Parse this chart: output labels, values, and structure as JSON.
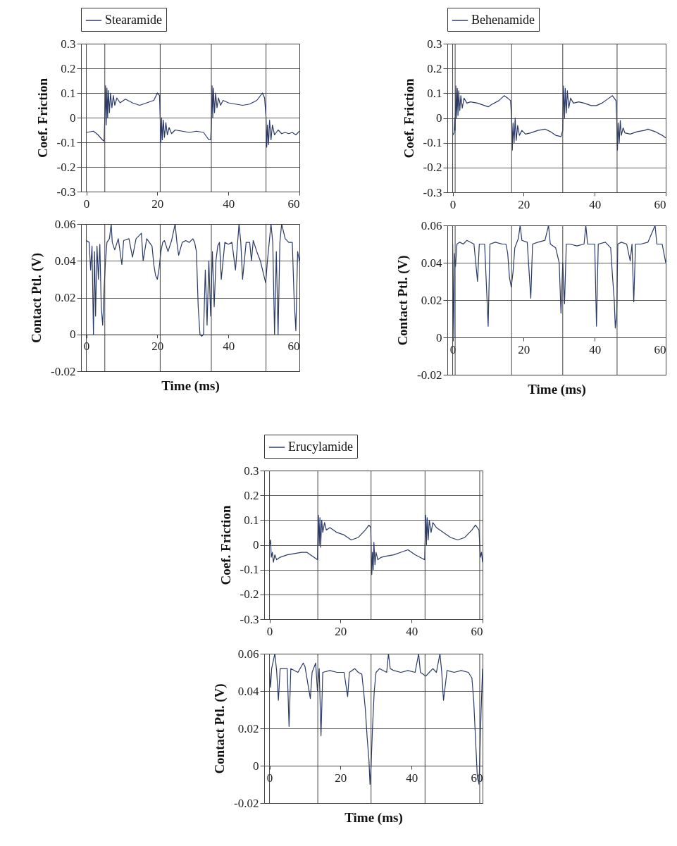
{
  "chart_data": [
    {
      "type": "line",
      "ylabel": "Coef. Friction",
      "xlim": [
        -1.5,
        60
      ],
      "xticks": [
        0,
        20,
        40,
        60
      ],
      "ylim": [
        -0.3,
        0.3
      ],
      "yticks": [
        -0.3,
        -0.2,
        -0.1,
        0,
        0.1,
        0.2,
        0.3
      ],
      "grid": "y",
      "legend": "top",
      "ref_lines": [
        {
          "axis": "x",
          "value": 0
        },
        {
          "axis": "x",
          "value": 5.2
        },
        {
          "axis": "x",
          "value": 20.8
        },
        {
          "axis": "x",
          "value": 35.2
        },
        {
          "axis": "x",
          "value": 50.6
        }
      ],
      "series": [
        {
          "name": "Stearamide",
          "color": "#2b3a67",
          "x": [
            0,
            2,
            3.3,
            4.5,
            5,
            5.2,
            5.4,
            5.6,
            5.8,
            6,
            6.2,
            6.5,
            6.8,
            7.2,
            7.6,
            8,
            8.6,
            9.5,
            11,
            13,
            15,
            17,
            19,
            20,
            20.6,
            20.8,
            21,
            21.2,
            21.4,
            21.7,
            22,
            22.4,
            22.8,
            23.3,
            24,
            25,
            27,
            29,
            31,
            33,
            34.5,
            35,
            35.2,
            35.4,
            35.6,
            35.8,
            36.1,
            36.4,
            36.8,
            37.2,
            37.8,
            38.5,
            40,
            42,
            44,
            46,
            48,
            49.6,
            50.2,
            50.6,
            50.8,
            51,
            51.3,
            51.6,
            52,
            52.4,
            53,
            54,
            55,
            56,
            57,
            58,
            59,
            60
          ],
          "values": [
            -0.06,
            -0.055,
            -0.07,
            -0.09,
            -0.095,
            0,
            0.13,
            -0.03,
            0.12,
            0,
            0.11,
            0.02,
            0.1,
            0.04,
            0.09,
            0.05,
            0.08,
            0.06,
            0.075,
            0.06,
            0.05,
            0.06,
            0.07,
            0.1,
            0.09,
            0,
            -0.1,
            0,
            -0.09,
            -0.01,
            -0.08,
            -0.02,
            -0.07,
            -0.04,
            -0.065,
            -0.05,
            -0.055,
            -0.06,
            -0.055,
            -0.06,
            -0.09,
            -0.09,
            -0.03,
            0.13,
            0,
            0.12,
            0.02,
            0.1,
            0.04,
            0.08,
            0.05,
            0.07,
            0.06,
            0.055,
            0.05,
            0.055,
            0.07,
            0.1,
            0.08,
            0,
            -0.12,
            -0.03,
            -0.11,
            -0.01,
            -0.09,
            -0.03,
            -0.07,
            -0.05,
            -0.065,
            -0.06,
            -0.065,
            -0.06,
            -0.07,
            -0.055
          ]
        }
      ]
    },
    {
      "type": "line",
      "xlabel": "Time (ms)",
      "ylabel": "Contact Ptl. (V)",
      "xlim": [
        -1.5,
        60
      ],
      "xticks": [
        0,
        20,
        40,
        60
      ],
      "ylim": [
        -0.02,
        0.06
      ],
      "yticks": [
        -0.02,
        0,
        0.02,
        0.04,
        0.06
      ],
      "grid": "y",
      "ref_lines": [
        {
          "axis": "x",
          "value": 0
        },
        {
          "axis": "x",
          "value": 5.2
        },
        {
          "axis": "x",
          "value": 20.8
        },
        {
          "axis": "x",
          "value": 35.2
        },
        {
          "axis": "x",
          "value": 50.6
        }
      ],
      "series": [
        {
          "color": "#2b3a67",
          "x": [
            0,
            0.8,
            1.2,
            1.6,
            2,
            2.3,
            2.6,
            3,
            3.4,
            3.8,
            4.2,
            4.6,
            5,
            5.4,
            5.8,
            6.5,
            7,
            7.3,
            8,
            9,
            10,
            10.5,
            12,
            13,
            14,
            15.5,
            16,
            17,
            18.5,
            19,
            19.5,
            20,
            20.5,
            21,
            21.5,
            22,
            23,
            24,
            25,
            25.5,
            26,
            27,
            28,
            29,
            30,
            30.5,
            31,
            31.5,
            32,
            32.5,
            33,
            33.5,
            34,
            34.5,
            35,
            35.5,
            36,
            36.5,
            37,
            37.5,
            38,
            39,
            40,
            41,
            42,
            43,
            43.5,
            44,
            45,
            46,
            46.5,
            47,
            48,
            49,
            50,
            50.5,
            51,
            51.5,
            52,
            52.5,
            53,
            53.5,
            54,
            54.5,
            55,
            56,
            57,
            58,
            58.5,
            59,
            59.5,
            60
          ],
          "values": [
            0.051,
            0.05,
            0.035,
            0.048,
            0,
            0.045,
            0.01,
            0.048,
            0.03,
            0.049,
            0.015,
            0.005,
            0.025,
            0.04,
            0.05,
            0.052,
            0.06,
            0.05,
            0.046,
            0.052,
            0.038,
            0.051,
            0.052,
            0.042,
            0.052,
            0.055,
            0.04,
            0.052,
            0.048,
            0.038,
            0.032,
            0.03,
            0.036,
            0.045,
            0.05,
            0.051,
            0.045,
            0.051,
            0.06,
            0.05,
            0.043,
            0.05,
            0.051,
            0.05,
            0.052,
            0.05,
            0.045,
            0.015,
            0,
            -0.001,
            0,
            0.035,
            0.005,
            0.04,
            0.01,
            0.045,
            0.015,
            0.04,
            0.048,
            0.05,
            0.03,
            0.05,
            0.049,
            0.05,
            0.035,
            0.06,
            0.05,
            0.03,
            0.05,
            0.05,
            0.04,
            0.051,
            0.045,
            0.04,
            0.032,
            0.028,
            0.04,
            0.05,
            0.06,
            0.05,
            0,
            0.045,
            0,
            0.05,
            0.06,
            0.052,
            0.05,
            0.05,
            0.02,
            0.002,
            0.045,
            0.04
          ]
        }
      ]
    },
    {
      "type": "line",
      "ylabel": "Coef. Friction",
      "xlim": [
        -1.5,
        60
      ],
      "xticks": [
        0,
        20,
        40,
        60
      ],
      "ylim": [
        -0.3,
        0.3
      ],
      "yticks": [
        -0.3,
        -0.2,
        -0.1,
        0,
        0.1,
        0.2,
        0.3
      ],
      "grid": "y",
      "legend": "top",
      "ref_lines": [
        {
          "axis": "x",
          "value": 0
        },
        {
          "axis": "x",
          "value": 0.7
        },
        {
          "axis": "x",
          "value": 16.6
        },
        {
          "axis": "x",
          "value": 31
        },
        {
          "axis": "x",
          "value": 46.3
        }
      ],
      "series": [
        {
          "name": "Behenamide",
          "color": "#2b3a67",
          "x": [
            0,
            0.4,
            0.6,
            0.7,
            0.9,
            1.1,
            1.3,
            1.5,
            1.7,
            2,
            2.3,
            2.7,
            3.2,
            4,
            5,
            7,
            9,
            10,
            11,
            13,
            14.5,
            15.5,
            16.3,
            16.6,
            16.8,
            17,
            17.3,
            17.6,
            17.9,
            18.3,
            18.8,
            19.5,
            20.5,
            22,
            24,
            26,
            27.5,
            29,
            30.5,
            31,
            31.2,
            31.5,
            31.7,
            32,
            32.3,
            32.7,
            33.2,
            34,
            35.5,
            37,
            39,
            40.5,
            42,
            43.5,
            45,
            46,
            46.2,
            46.4,
            46.6,
            46.9,
            47.2,
            47.5,
            48,
            48.5,
            50,
            52,
            54,
            55,
            57,
            59,
            60
          ],
          "values": [
            -0.07,
            -0.06,
            0,
            -0.05,
            0.13,
            0,
            0.12,
            0.01,
            0.11,
            0.03,
            0.09,
            0.04,
            0.08,
            0.06,
            0.065,
            0.06,
            0.05,
            0.045,
            0.055,
            0.07,
            0.09,
            0.08,
            0.07,
            0,
            -0.13,
            -0.02,
            -0.1,
            0,
            -0.09,
            -0.03,
            -0.07,
            -0.05,
            -0.065,
            -0.06,
            -0.05,
            -0.045,
            -0.055,
            -0.07,
            -0.075,
            -0.05,
            0.13,
            0,
            0.12,
            0.02,
            0.11,
            0.04,
            0.08,
            0.06,
            0.065,
            0.06,
            0.05,
            0.05,
            0.06,
            0.075,
            0.09,
            0.07,
            0,
            -0.13,
            -0.02,
            -0.1,
            -0.01,
            -0.07,
            -0.04,
            -0.06,
            -0.065,
            -0.055,
            -0.05,
            -0.045,
            -0.055,
            -0.07,
            -0.08
          ]
        }
      ]
    },
    {
      "type": "line",
      "xlabel": "Time (ms)",
      "ylabel": "Contact Ptl. (V)",
      "xlim": [
        -1.5,
        60
      ],
      "xticks": [
        0,
        20,
        40,
        60
      ],
      "ylim": [
        -0.02,
        0.06
      ],
      "yticks": [
        -0.02,
        0,
        0.02,
        0.04,
        0.06
      ],
      "grid": "y",
      "ref_lines": [
        {
          "axis": "x",
          "value": 0
        },
        {
          "axis": "x",
          "value": 0.7
        },
        {
          "axis": "x",
          "value": 16.6
        },
        {
          "axis": "x",
          "value": 31
        },
        {
          "axis": "x",
          "value": 46.3
        }
      ],
      "series": [
        {
          "color": "#2b3a67",
          "x": [
            0,
            0.3,
            0.5,
            0.8,
            1.2,
            2,
            3,
            4,
            6,
            7,
            7.5,
            9,
            10,
            10.5,
            12,
            14,
            15,
            15.5,
            16,
            16.5,
            17,
            17.5,
            18.5,
            19,
            19.5,
            21,
            22,
            22.5,
            24,
            26,
            27,
            27.5,
            29,
            30,
            30.5,
            31,
            31.5,
            32,
            33,
            35,
            37,
            37.5,
            38,
            40,
            40.5,
            41,
            43,
            44.5,
            45,
            45.5,
            45.8,
            46.2,
            46.5,
            47.5,
            49,
            50,
            50.5,
            51,
            51.5,
            53,
            55,
            57,
            57.5,
            59,
            60
          ],
          "values": [
            0.05,
            0,
            0.045,
            0.038,
            0.05,
            0.051,
            0.05,
            0.052,
            0.05,
            0.03,
            0.05,
            0.05,
            0.006,
            0.05,
            0.051,
            0.05,
            0.05,
            0.045,
            0.032,
            0.027,
            0.035,
            0.048,
            0.053,
            0.06,
            0.052,
            0.051,
            0.021,
            0.05,
            0.051,
            0.052,
            0.06,
            0.05,
            0.048,
            0.04,
            0.013,
            0.04,
            0.018,
            0.05,
            0.05,
            0.049,
            0.05,
            0.06,
            0.05,
            0.05,
            0.006,
            0.05,
            0.051,
            0.048,
            0.033,
            0.02,
            0.005,
            0.013,
            0.05,
            0.051,
            0.05,
            0.041,
            0.05,
            0.019,
            0.05,
            0.05,
            0.051,
            0.06,
            0.05,
            0.05,
            0.04
          ]
        }
      ]
    },
    {
      "type": "line",
      "ylabel": "Coef. Friction",
      "xlim": [
        -1.5,
        60
      ],
      "xticks": [
        0,
        20,
        40,
        60
      ],
      "ylim": [
        -0.3,
        0.3
      ],
      "yticks": [
        -0.3,
        -0.2,
        -0.1,
        0,
        0.1,
        0.2,
        0.3
      ],
      "grid": "y",
      "legend": "top",
      "ref_lines": [
        {
          "axis": "x",
          "value": 0
        },
        {
          "axis": "x",
          "value": 13.6
        },
        {
          "axis": "x",
          "value": 28.6
        },
        {
          "axis": "x",
          "value": 43.8
        },
        {
          "axis": "x",
          "value": 59.2
        }
      ],
      "series": [
        {
          "name": "Erucylamide",
          "color": "#2b3a67",
          "x": [
            0,
            0.3,
            0.5,
            0.8,
            1.1,
            1.5,
            2,
            3,
            5,
            7,
            9,
            10.5,
            12,
            13.5,
            13.6,
            13.8,
            14,
            14.2,
            14.4,
            14.7,
            15,
            15.5,
            16,
            17,
            19,
            21,
            23,
            25,
            27,
            28,
            28.5,
            28.6,
            28.8,
            29,
            29.2,
            29.4,
            29.7,
            30,
            30.5,
            31.5,
            33,
            35,
            37,
            39,
            41,
            43,
            43.7,
            43.8,
            44,
            44.2,
            44.4,
            44.7,
            45,
            45.5,
            46,
            47,
            49,
            51,
            53,
            55,
            57,
            58,
            59,
            59.2,
            59.4,
            59.7,
            60
          ],
          "values": [
            0,
            0.02,
            -0.05,
            -0.03,
            -0.07,
            -0.04,
            -0.06,
            -0.05,
            -0.04,
            -0.035,
            -0.03,
            -0.03,
            -0.045,
            -0.06,
            0,
            0.12,
            0,
            0.11,
            -0.01,
            0.1,
            0.05,
            0.09,
            0.06,
            0.07,
            0.05,
            0.04,
            0.02,
            0.03,
            0.06,
            0.08,
            0.07,
            0,
            -0.12,
            -0.03,
            -0.1,
            0.01,
            -0.08,
            -0.03,
            -0.06,
            -0.05,
            -0.045,
            -0.04,
            -0.03,
            -0.02,
            -0.04,
            -0.055,
            -0.06,
            0,
            0.12,
            0,
            0.11,
            0.02,
            0.1,
            0.05,
            0.09,
            0.07,
            0.05,
            0.03,
            0.02,
            0.03,
            0.06,
            0.08,
            0.06,
            0,
            -0.05,
            -0.03,
            -0.07
          ]
        }
      ]
    },
    {
      "type": "line",
      "xlabel": "Time (ms)",
      "ylabel": "Contact Ptl. (V)",
      "xlim": [
        -1.5,
        60
      ],
      "xticks": [
        0,
        20,
        40,
        60
      ],
      "ylim": [
        -0.02,
        0.06
      ],
      "yticks": [
        -0.02,
        0,
        0.02,
        0.04,
        0.06
      ],
      "grid": "y",
      "ref_lines": [
        {
          "axis": "x",
          "value": 0
        },
        {
          "axis": "x",
          "value": 13.6
        },
        {
          "axis": "x",
          "value": 28.6
        },
        {
          "axis": "x",
          "value": 43.8
        },
        {
          "axis": "x",
          "value": 59.2
        }
      ],
      "series": [
        {
          "color": "#2b3a67",
          "x": [
            0,
            0.3,
            0.6,
            1.5,
            2,
            2.5,
            3,
            5,
            5.5,
            6,
            8,
            9.5,
            10,
            11.5,
            12,
            13,
            13.5,
            14,
            14.5,
            15,
            17,
            19,
            21,
            22,
            22.5,
            24,
            25,
            26,
            26.5,
            27,
            27.5,
            28,
            28.3,
            28.6,
            29,
            29.5,
            30,
            31,
            33,
            33.5,
            34,
            35,
            37,
            39,
            41,
            42,
            42.5,
            44,
            45,
            46,
            47,
            48,
            48.5,
            49,
            50,
            52,
            54,
            56,
            57,
            57.5,
            58,
            58.5,
            59,
            59.3,
            59.6,
            60
          ],
          "values": [
            0.05,
            0.042,
            0.052,
            0.06,
            0.051,
            0.035,
            0.052,
            0.052,
            0.021,
            0.052,
            0.05,
            0.055,
            0.053,
            0.036,
            0.05,
            0.055,
            0.04,
            0.052,
            0.016,
            0.05,
            0.051,
            0.05,
            0.05,
            0.037,
            0.05,
            0.052,
            0.05,
            0.049,
            0.04,
            0.03,
            0.015,
            0.003,
            -0.01,
            0,
            0.02,
            0.04,
            0.05,
            0.052,
            0.05,
            0.06,
            0.052,
            0.051,
            0.05,
            0.051,
            0.05,
            0.06,
            0.05,
            0.048,
            0.05,
            0.052,
            0.05,
            0.06,
            0.05,
            0.035,
            0.051,
            0.05,
            0.051,
            0.05,
            0.047,
            0.035,
            0.015,
            -0.005,
            -0.01,
            0.01,
            0.03,
            0.052
          ]
        }
      ]
    }
  ]
}
